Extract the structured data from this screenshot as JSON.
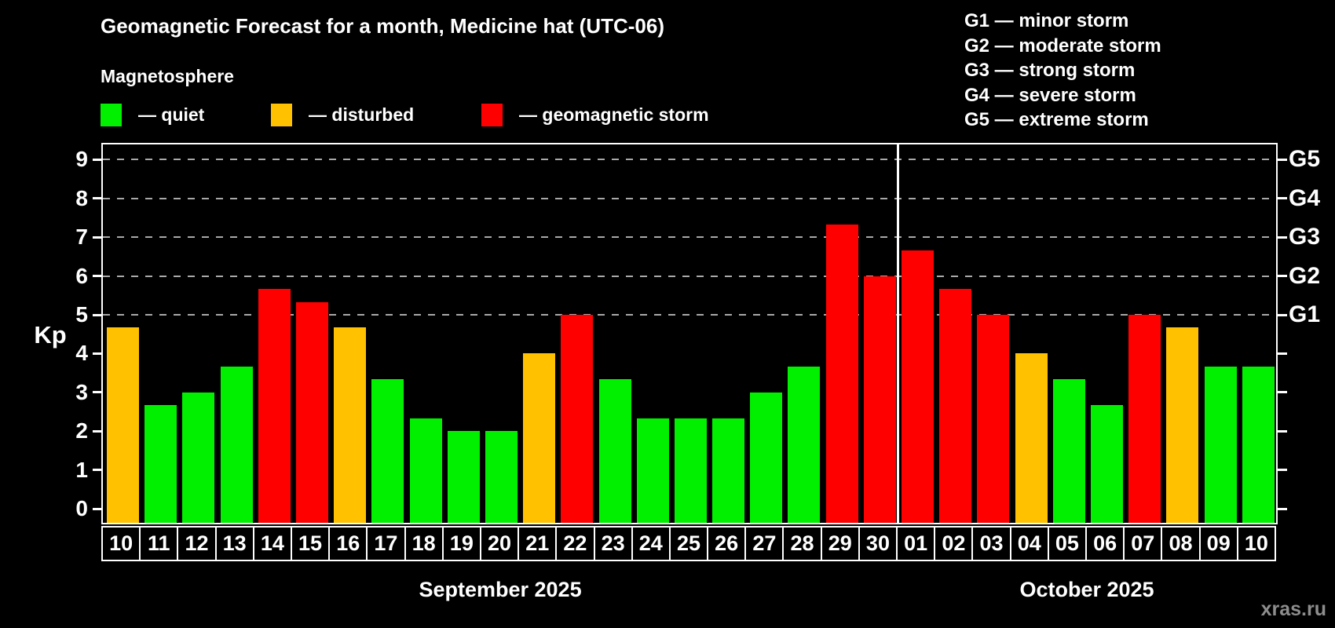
{
  "header": {
    "title": "Geomagnetic Forecast for a month, Medicine hat (UTC-06)",
    "subtitle": "Magnetosphere"
  },
  "legend": {
    "items": [
      {
        "status": "quiet",
        "label": "— quiet"
      },
      {
        "status": "disturbed",
        "label": "— disturbed"
      },
      {
        "status": "storm",
        "label": "— geomagnetic storm"
      }
    ]
  },
  "storm_scale_legend": [
    "G1 — minor storm",
    "G2 — moderate storm",
    "G3 — strong storm",
    "G4 — severe storm",
    "G5 — extreme storm"
  ],
  "colors": {
    "quiet": "#00f000",
    "disturbed": "#ffc100",
    "storm": "#fe0000",
    "gridline": "#a9a9a9",
    "axis": "#ffffff",
    "watermark": "#8d8d8d"
  },
  "chart_data": {
    "type": "bar",
    "ylabel": "Kp",
    "ylim": [
      0,
      9
    ],
    "y_ticks": [
      0,
      1,
      2,
      3,
      4,
      5,
      6,
      7,
      8,
      9
    ],
    "gridlines_at_kp": [
      5,
      6,
      7,
      8,
      9
    ],
    "right_axis_labels": [
      {
        "kp": 5,
        "label": "G1"
      },
      {
        "kp": 6,
        "label": "G2"
      },
      {
        "kp": 7,
        "label": "G3"
      },
      {
        "kp": 8,
        "label": "G4"
      },
      {
        "kp": 9,
        "label": "G5"
      }
    ],
    "months": [
      {
        "label": "September 2025",
        "days": [
          {
            "day": "10",
            "kp": 4.67,
            "status": "disturbed"
          },
          {
            "day": "11",
            "kp": 2.67,
            "status": "quiet"
          },
          {
            "day": "12",
            "kp": 3.0,
            "status": "quiet"
          },
          {
            "day": "13",
            "kp": 3.67,
            "status": "quiet"
          },
          {
            "day": "14",
            "kp": 5.67,
            "status": "storm"
          },
          {
            "day": "15",
            "kp": 5.33,
            "status": "storm"
          },
          {
            "day": "16",
            "kp": 4.67,
            "status": "disturbed"
          },
          {
            "day": "17",
            "kp": 3.33,
            "status": "quiet"
          },
          {
            "day": "18",
            "kp": 2.33,
            "status": "quiet"
          },
          {
            "day": "19",
            "kp": 2.0,
            "status": "quiet"
          },
          {
            "day": "20",
            "kp": 2.0,
            "status": "quiet"
          },
          {
            "day": "21",
            "kp": 4.0,
            "status": "disturbed"
          },
          {
            "day": "22",
            "kp": 5.0,
            "status": "storm"
          },
          {
            "day": "23",
            "kp": 3.33,
            "status": "quiet"
          },
          {
            "day": "24",
            "kp": 2.33,
            "status": "quiet"
          },
          {
            "day": "25",
            "kp": 2.33,
            "status": "quiet"
          },
          {
            "day": "26",
            "kp": 2.33,
            "status": "quiet"
          },
          {
            "day": "27",
            "kp": 3.0,
            "status": "quiet"
          },
          {
            "day": "28",
            "kp": 3.67,
            "status": "quiet"
          },
          {
            "day": "29",
            "kp": 7.33,
            "status": "storm"
          },
          {
            "day": "30",
            "kp": 6.0,
            "status": "storm"
          }
        ]
      },
      {
        "label": "October 2025",
        "days": [
          {
            "day": "01",
            "kp": 6.67,
            "status": "storm"
          },
          {
            "day": "02",
            "kp": 5.67,
            "status": "storm"
          },
          {
            "day": "03",
            "kp": 5.0,
            "status": "storm"
          },
          {
            "day": "04",
            "kp": 4.0,
            "status": "disturbed"
          },
          {
            "day": "05",
            "kp": 3.33,
            "status": "quiet"
          },
          {
            "day": "06",
            "kp": 2.67,
            "status": "quiet"
          },
          {
            "day": "07",
            "kp": 5.0,
            "status": "storm"
          },
          {
            "day": "08",
            "kp": 4.67,
            "status": "disturbed"
          },
          {
            "day": "09",
            "kp": 3.67,
            "status": "quiet"
          },
          {
            "day": "10",
            "kp": 3.67,
            "status": "quiet"
          }
        ]
      }
    ]
  },
  "footer": {
    "watermark": "xras.ru"
  }
}
